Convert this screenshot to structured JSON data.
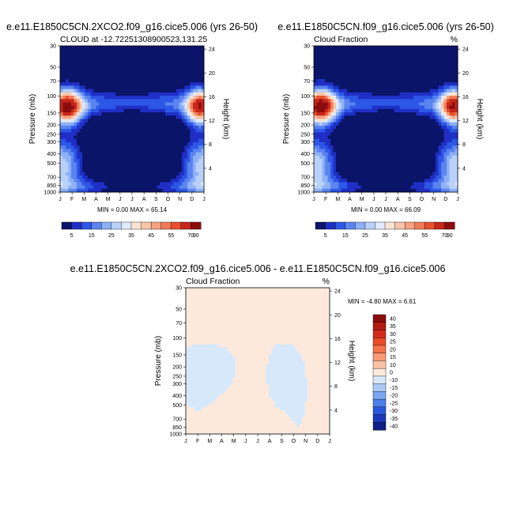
{
  "chart_data": [
    {
      "type": "contour",
      "title": "e.e11.E1850C5CN.2XCO2.f09_g16.cice5.006 (yrs 26-50)",
      "subtitle_left": "CLOUD at -12.72251308900523,131.25",
      "subtitle_right": "",
      "ylabel": "Pressure (mb)",
      "ylabel_right": "Height (km)",
      "x_ticks": [
        "J",
        "F",
        "M",
        "A",
        "M",
        "J",
        "J",
        "A",
        "S",
        "O",
        "N",
        "D",
        "J"
      ],
      "pressure_ticks": [
        "30",
        "50",
        "70",
        "100",
        "150",
        "200",
        "250",
        "300",
        "400",
        "500",
        "700",
        "850",
        "1000"
      ],
      "height_ticks": [
        "24",
        "20",
        "16",
        "12",
        "8",
        "4"
      ],
      "stats": "MIN =   0.00 MAX =  65.14",
      "min": 0.0,
      "max": 65.14,
      "colorbar_labels": [
        "5",
        "15",
        "25",
        "35",
        "45",
        "55",
        "70",
        "90"
      ]
    },
    {
      "type": "contour",
      "title": "e.e11.E1850C5CN.f09_g16.cice5.006 (yrs 26-50)",
      "subtitle_left": "Cloud Fraction",
      "subtitle_right": "%",
      "ylabel": "Pressure (mb)",
      "ylabel_right": "Height (km)",
      "x_ticks": [
        "J",
        "F",
        "M",
        "A",
        "M",
        "J",
        "J",
        "A",
        "S",
        "O",
        "N",
        "D",
        "J"
      ],
      "pressure_ticks": [
        "30",
        "50",
        "70",
        "100",
        "150",
        "200",
        "250",
        "300",
        "400",
        "500",
        "700",
        "850",
        "1000"
      ],
      "height_ticks": [
        "24",
        "20",
        "16",
        "12",
        "8",
        "4"
      ],
      "stats": "MIN =   0.00 MAX =  66.09",
      "min": 0.0,
      "max": 66.09,
      "colorbar_labels": [
        "5",
        "15",
        "25",
        "35",
        "45",
        "55",
        "70",
        "90"
      ]
    },
    {
      "type": "contour",
      "title": "e.e11.E1850C5CN.2XCO2.f09_g16.cice5.006 - e.e11.E1850C5CN.f09_g16.cice5.006",
      "subtitle_left": "Cloud Fraction",
      "subtitle_right": "%",
      "ylabel": "Pressure (mb)",
      "ylabel_right": "Height (km)",
      "x_ticks": [
        "J",
        "F",
        "M",
        "A",
        "M",
        "J",
        "J",
        "A",
        "S",
        "O",
        "N",
        "D",
        "J"
      ],
      "pressure_ticks": [
        "30",
        "50",
        "70",
        "100",
        "150",
        "200",
        "250",
        "300",
        "400",
        "500",
        "700",
        "850",
        "1000"
      ],
      "height_ticks": [
        "24",
        "20",
        "16",
        "12",
        "8",
        "4"
      ],
      "stats": "MIN =  -4.80 MAX =   6.61",
      "min": -4.8,
      "max": 6.61,
      "colorbar_labels": [
        "40",
        "35",
        "30",
        "25",
        "20",
        "15",
        "10",
        "0",
        "-10",
        "-15",
        "-20",
        "-25",
        "-30",
        "-35",
        "-40"
      ]
    }
  ],
  "colors": {
    "seq": [
      "#0a1468",
      "#1f2fc6",
      "#2d57e6",
      "#5a84ef",
      "#8db0f6",
      "#b9d1fa",
      "#dfeafd",
      "#fbe3d2",
      "#f8c5a8",
      "#f5a27e",
      "#f07a55",
      "#e84f2c",
      "#c7261a",
      "#8c0d0d"
    ],
    "div": [
      "#8c0d0d",
      "#b21a14",
      "#d42a1d",
      "#ec4a2b",
      "#f5734c",
      "#f89b76",
      "#fbc3a6",
      "#fde9dc",
      "#d7e8fb",
      "#adc9f6",
      "#7da6f1",
      "#4d7fe9",
      "#2a57dc",
      "#1d37b9",
      "#0f1f83"
    ],
    "background": "#ffffff"
  }
}
